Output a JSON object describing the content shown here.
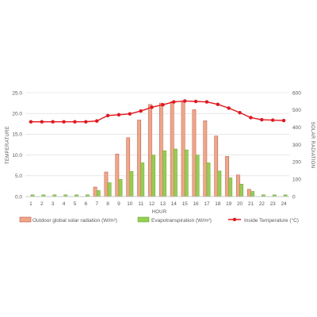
{
  "chart_data": {
    "type": "bar-line-combo",
    "title": "",
    "xlabel": "HOUR",
    "ylabel_left": "TEMPERATURE",
    "ylabel_right": "SOLAR RADIATION",
    "categories": [
      "1",
      "2",
      "3",
      "4",
      "5",
      "6",
      "7",
      "8",
      "9",
      "10",
      "11",
      "12",
      "13",
      "14",
      "15",
      "16",
      "17",
      "18",
      "19",
      "20",
      "21",
      "22",
      "23",
      "24"
    ],
    "ylim_left": [
      0,
      25
    ],
    "yticks_left": [
      "0.0",
      "5.0",
      "10.0",
      "15.0",
      "20.0",
      "25.0"
    ],
    "ylim_right": [
      0,
      600
    ],
    "yticks_right": [
      "0",
      "100",
      "200",
      "300",
      "400",
      "500",
      "600"
    ],
    "grid": true,
    "legend_position": "bottom",
    "series": [
      {
        "name": "Outdoor global solar radiation (W/m²)",
        "type": "bar",
        "axis": "right",
        "color": "#f4a582",
        "stroke": "#c0504d",
        "values": [
          0,
          0,
          0,
          0,
          0,
          0,
          55,
          142,
          246,
          340,
          442,
          532,
          540,
          548,
          545,
          502,
          438,
          350,
          232,
          125,
          42,
          0,
          0,
          0
        ]
      },
      {
        "name": "Evapotranspiration (W/m²)",
        "type": "bar",
        "axis": "right",
        "color": "#92d050",
        "stroke": "#6aa83a",
        "values": [
          10,
          10,
          10,
          10,
          10,
          10,
          35,
          80,
          100,
          145,
          195,
          240,
          265,
          275,
          270,
          240,
          195,
          148,
          108,
          72,
          30,
          10,
          10,
          10
        ]
      },
      {
        "name": "Inside Temperature (°C)",
        "type": "line",
        "axis": "left",
        "color": "#e8141b",
        "values": [
          18.0,
          18.0,
          18.0,
          18.0,
          18.0,
          18.0,
          18.2,
          19.5,
          19.7,
          19.9,
          20.6,
          21.5,
          22.1,
          22.8,
          23.0,
          22.9,
          22.8,
          22.2,
          21.3,
          20.2,
          19.0,
          18.5,
          18.4,
          18.3
        ]
      }
    ]
  }
}
